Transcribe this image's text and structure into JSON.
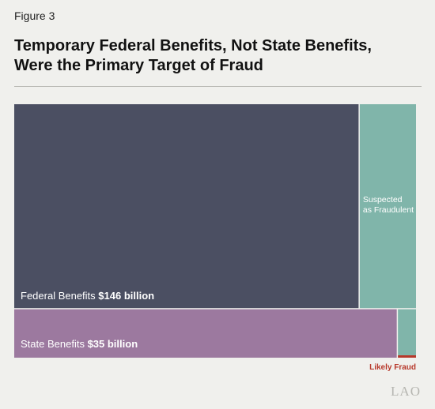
{
  "figure_label": "Figure 3",
  "title_lines": [
    "Temporary Federal Benefits, Not State Benefits,",
    "Were the Primary Target of Fraud"
  ],
  "logo_text": "LAO",
  "chart_data": {
    "type": "treemap",
    "title": "Temporary Federal Benefits, Not State Benefits, Were the Primary Target of Fraud",
    "units": "billion dollars",
    "groups": [
      {
        "name": "Federal Benefits",
        "total_label": "$146 billion",
        "total": 146,
        "suspected_fraud_share": 0.14,
        "color": "#4b4f62",
        "fraud_color": "#80b5aa"
      },
      {
        "name": "State Benefits",
        "total_label": "$35 billion",
        "total": 35,
        "suspected_fraud_share": 0.045,
        "likely_fraud_share": 0.045,
        "color": "#9c799f",
        "fraud_color": "#80b5aa",
        "likely_color": "#b7382a"
      }
    ],
    "annotations": {
      "suspected": [
        "Suspected",
        "as Fraudulent"
      ],
      "likely": "Likely Fraud"
    }
  }
}
